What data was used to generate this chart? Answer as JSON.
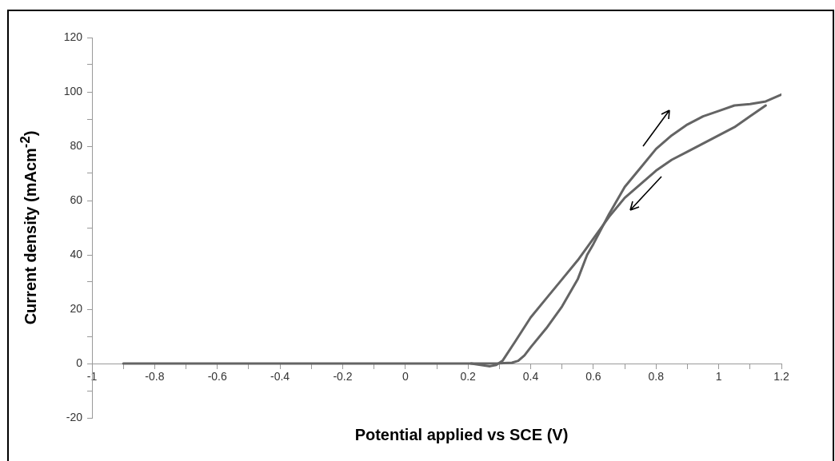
{
  "chart_data": {
    "type": "line",
    "xlabel": "Potential applied vs SCE (V)",
    "ylabel": "Current density (mAcm$^{-2}$)",
    "series": [
      {
        "color": "#646464",
        "x": [
          -0.9,
          -0.5,
          0,
          0.2,
          0.3,
          0.34,
          0.36,
          0.38,
          0.4,
          0.45,
          0.5,
          0.55,
          0.58,
          0.6,
          0.65,
          0.7,
          0.75,
          0.8,
          0.85,
          0.9,
          0.95,
          1.0,
          1.05,
          1.1,
          1.15,
          1.2
        ],
        "values": [
          0,
          0,
          0,
          0,
          0.1,
          0.3,
          1,
          3,
          6,
          13,
          21,
          31,
          40,
          44,
          55,
          65,
          72,
          79,
          84,
          88,
          91,
          93,
          95,
          95.5,
          96.5,
          99
        ]
      },
      {
        "color": "#646464",
        "x": [
          1.15,
          1.1,
          1.05,
          1.0,
          0.95,
          0.9,
          0.85,
          0.8,
          0.75,
          0.7,
          0.65,
          0.6,
          0.55,
          0.5,
          0.45,
          0.4,
          0.35,
          0.31,
          0.29,
          0.27,
          0.24,
          0.21
        ],
        "values": [
          95,
          91,
          87,
          84,
          81,
          78,
          75,
          71,
          66,
          61,
          54,
          46,
          38,
          31,
          24,
          17,
          8,
          1,
          -0.5,
          -1,
          -0.5,
          0
        ]
      }
    ],
    "xlim": [
      -1,
      1.2
    ],
    "xticks": [
      -1,
      {
        "value": -0.9,
        "label": null
      },
      -0.8,
      {
        "value": -0.7,
        "label": null
      },
      -0.6,
      {
        "value": -0.5,
        "label": null
      },
      -0.4,
      {
        "value": -0.3,
        "label": null
      },
      -0.2,
      {
        "value": -0.1,
        "label": null
      },
      0,
      {
        "value": 0.1,
        "label": null
      },
      0.2,
      {
        "value": 0.3,
        "label": null
      },
      0.4,
      {
        "value": 0.5,
        "label": null
      },
      0.6,
      {
        "value": 0.7,
        "label": null
      },
      0.8,
      {
        "value": 0.9,
        "label": null
      },
      1,
      {
        "value": 1.1,
        "label": null
      },
      1.2
    ],
    "ylim": [
      -20,
      120
    ],
    "yticks": [
      -20,
      {
        "value": -10,
        "label": null
      },
      0,
      {
        "value": 10,
        "label": null
      },
      20,
      {
        "value": 30,
        "label": null
      },
      40,
      {
        "value": 50,
        "label": null
      },
      60,
      {
        "value": 70,
        "label": null
      },
      80,
      {
        "value": 90,
        "label": null
      },
      100,
      {
        "value": 110,
        "label": null
      },
      120
    ],
    "grid": false,
    "legend": false,
    "marker": "none",
    "line_style": "solid"
  }
}
